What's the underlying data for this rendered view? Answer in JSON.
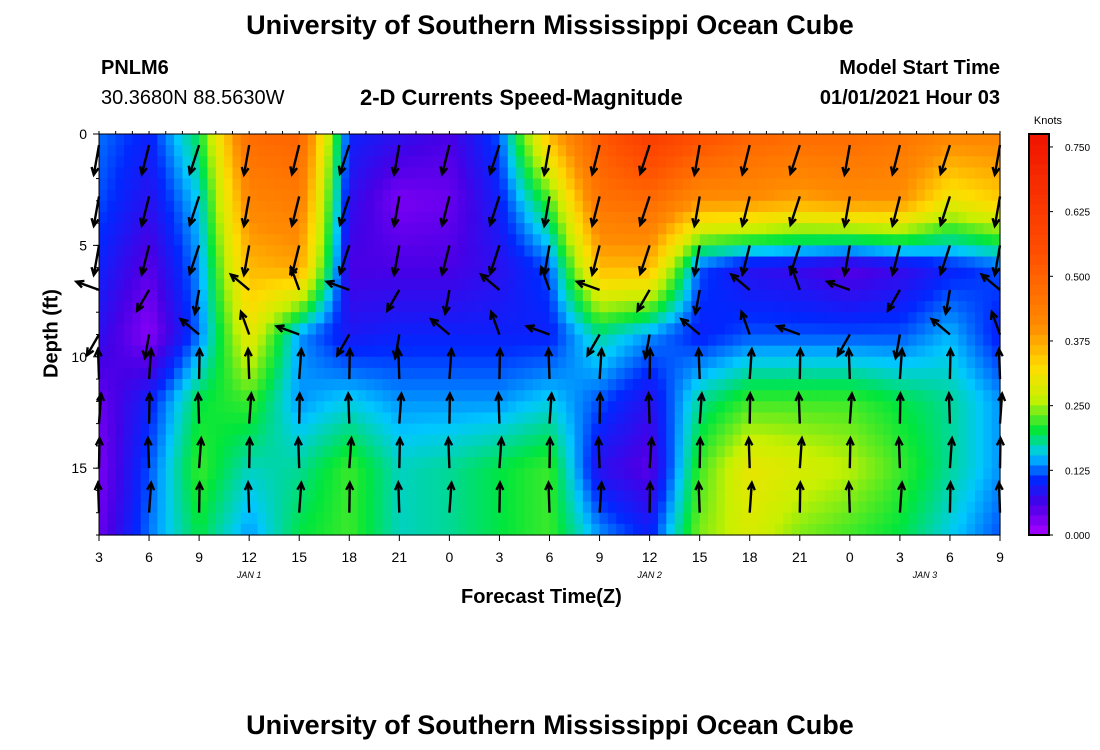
{
  "titles": {
    "top": "University of Southern Mississippi Ocean Cube",
    "bottom": "University of Southern Mississippi Ocean Cube"
  },
  "station": {
    "id": "PNLM6",
    "coords": "30.3680N 88.5630W"
  },
  "model": {
    "label": "Model Start Time",
    "start": "01/01/2021 Hour 03"
  },
  "chart_data": {
    "type": "heatmap",
    "title": "2-D Currents Speed-Magnitude",
    "xlabel": "Forecast Time(Z)",
    "ylabel": "Depth (ft)",
    "x_tick_labels": [
      "3",
      "6",
      "9",
      "12",
      "15",
      "18",
      "21",
      "0",
      "3",
      "6",
      "9",
      "12",
      "15",
      "18",
      "21",
      "0",
      "3",
      "6",
      "9"
    ],
    "x_tick_hours": [
      0,
      3,
      6,
      9,
      12,
      15,
      18,
      21,
      24,
      27,
      30,
      33,
      36,
      39,
      42,
      45,
      48,
      51,
      54
    ],
    "date_labels": [
      {
        "label": "JAN 1",
        "hour": 9
      },
      {
        "label": "JAN 2",
        "hour": 33
      },
      {
        "label": "JAN 3",
        "hour": 49.5
      }
    ],
    "xlim": [
      0,
      54
    ],
    "ylim": [
      0,
      18
    ],
    "y_ticks": [
      0,
      5,
      10,
      15
    ],
    "y_direction": "down",
    "colorbar": {
      "label": "Knots",
      "min": 0.0,
      "max": 0.775,
      "ticks": [
        "0.750",
        "0.625",
        "0.500",
        "0.375",
        "0.250",
        "0.125",
        "0.000"
      ],
      "tick_values": [
        0.75,
        0.625,
        0.5,
        0.375,
        0.25,
        0.125,
        0.0
      ]
    },
    "time_columns": [
      {
        "t": 0,
        "vals": [
          0.13,
          0.12,
          0.1,
          0.08,
          0.04,
          0.03,
          0.04
        ]
      },
      {
        "t": 3,
        "vals": [
          0.1,
          0.08,
          0.05,
          0.02,
          0.1,
          0.12,
          0.13
        ]
      },
      {
        "t": 6,
        "vals": [
          0.2,
          0.16,
          0.14,
          0.13,
          0.2,
          0.22,
          0.2
        ]
      },
      {
        "t": 9,
        "vals": [
          0.48,
          0.42,
          0.36,
          0.3,
          0.22,
          0.17,
          0.14
        ]
      },
      {
        "t": 12,
        "vals": [
          0.5,
          0.44,
          0.38,
          0.14,
          0.14,
          0.18,
          0.2
        ]
      },
      {
        "t": 15,
        "vals": [
          0.1,
          0.08,
          0.06,
          0.09,
          0.16,
          0.22,
          0.22
        ]
      },
      {
        "t": 18,
        "vals": [
          0.08,
          0.03,
          0.06,
          0.1,
          0.14,
          0.17,
          0.17
        ]
      },
      {
        "t": 21,
        "vals": [
          0.06,
          0.04,
          0.06,
          0.1,
          0.14,
          0.18,
          0.18
        ]
      },
      {
        "t": 24,
        "vals": [
          0.12,
          0.1,
          0.08,
          0.1,
          0.14,
          0.2,
          0.2
        ]
      },
      {
        "t": 27,
        "vals": [
          0.36,
          0.22,
          0.12,
          0.1,
          0.16,
          0.22,
          0.22
        ]
      },
      {
        "t": 30,
        "vals": [
          0.52,
          0.46,
          0.36,
          0.18,
          0.12,
          0.08,
          0.14
        ]
      },
      {
        "t": 33,
        "vals": [
          0.62,
          0.48,
          0.36,
          0.14,
          0.08,
          0.05,
          0.1
        ]
      },
      {
        "t": 36,
        "vals": [
          0.55,
          0.4,
          0.12,
          0.1,
          0.18,
          0.22,
          0.24
        ]
      },
      {
        "t": 39,
        "vals": [
          0.5,
          0.4,
          0.08,
          0.12,
          0.22,
          0.3,
          0.28
        ]
      },
      {
        "t": 42,
        "vals": [
          0.48,
          0.38,
          0.07,
          0.12,
          0.22,
          0.28,
          0.24
        ]
      },
      {
        "t": 45,
        "vals": [
          0.48,
          0.4,
          0.05,
          0.12,
          0.22,
          0.26,
          0.22
        ]
      },
      {
        "t": 48,
        "vals": [
          0.46,
          0.4,
          0.07,
          0.12,
          0.2,
          0.22,
          0.2
        ]
      },
      {
        "t": 51,
        "vals": [
          0.42,
          0.3,
          0.1,
          0.15,
          0.18,
          0.18,
          0.16
        ]
      },
      {
        "t": 54,
        "vals": [
          0.42,
          0.34,
          0.12,
          0.1,
          0.14,
          0.14,
          0.12
        ]
      }
    ],
    "depth_rows": [
      0,
      3,
      6,
      9,
      12,
      15,
      18
    ],
    "vector_times": [
      0,
      3,
      6,
      9,
      12,
      15,
      18,
      21,
      24,
      27,
      30,
      33,
      36,
      39,
      42,
      45,
      48,
      51,
      54
    ],
    "vector_depths": [
      0.5,
      2.8,
      5.0,
      7.0,
      9.0,
      11.0,
      13.0,
      15.0,
      17.0
    ]
  }
}
